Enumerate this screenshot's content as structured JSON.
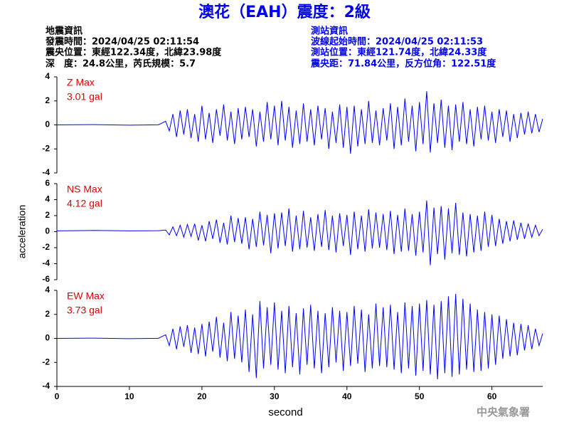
{
  "header": {
    "title": "澳花（EAH）震度：2級",
    "left": [
      "地震資訊",
      "發震時間：2024/04/25 02:11:54",
      "震央位置：東經122.34度，北緯23.98度",
      "深　度：24.8公里，芮氏規模：5.7"
    ],
    "right": [
      "測站資訊",
      "波線起始時間：2024/04/25 02:11:53",
      "測站位置：東經121.74度，北緯24.33度",
      "震央距：71.84公里，反方位角：122.51度"
    ]
  },
  "watermark": "中央氣象署",
  "chart_data": [
    {
      "type": "line",
      "annotations": [
        "Z Max",
        "3.01 gal"
      ],
      "color": "#0000ff",
      "xlim": [
        0,
        67
      ],
      "ylim": [
        -4,
        4
      ],
      "yticks": [
        -4,
        -2,
        0,
        2,
        4
      ],
      "x": [
        0,
        5,
        10,
        14,
        15,
        15.5,
        16,
        16.5,
        17,
        17.5,
        18,
        18.5,
        19,
        19.5,
        20,
        20.5,
        21,
        21.5,
        22,
        22.5,
        23,
        23.5,
        24,
        24.5,
        25,
        25.5,
        26,
        26.5,
        27,
        27.5,
        28,
        28.5,
        29,
        29.5,
        30,
        30.5,
        31,
        31.5,
        32,
        32.5,
        33,
        33.5,
        34,
        34.5,
        35,
        35.5,
        36,
        36.5,
        37,
        37.5,
        38,
        38.5,
        39,
        39.5,
        40,
        40.5,
        41,
        41.5,
        42,
        42.5,
        43,
        43.5,
        44,
        44.5,
        45,
        45.5,
        46,
        46.5,
        47,
        47.5,
        48,
        48.5,
        49,
        49.5,
        50,
        50.5,
        51,
        51.5,
        52,
        52.5,
        53,
        53.5,
        54,
        54.5,
        55,
        55.5,
        56,
        56.5,
        57,
        57.5,
        58,
        58.5,
        59,
        59.5,
        60,
        60.5,
        61,
        61.5,
        62,
        62.5,
        63,
        63.5,
        64,
        64.5,
        65,
        65.5,
        66,
        66.5,
        67
      ],
      "values": [
        0,
        0.02,
        -0.02,
        0.01,
        0.3,
        -0.5,
        0.9,
        -1.0,
        1.2,
        -0.8,
        1.3,
        -1.1,
        0.9,
        -1.4,
        1.6,
        -1.2,
        1.0,
        -1.5,
        1.3,
        -0.9,
        1.7,
        -1.3,
        1.1,
        -1.6,
        1.4,
        -1.2,
        1.5,
        -1.0,
        1.3,
        -1.8,
        1.1,
        -1.4,
        1.9,
        -1.2,
        1.6,
        -1.7,
        2.0,
        -1.3,
        1.5,
        -1.9,
        1.2,
        -1.6,
        1.8,
        -1.4,
        1.3,
        -1.7,
        1.6,
        -1.2,
        1.4,
        -2.0,
        1.1,
        -1.5,
        1.7,
        -1.9,
        1.5,
        -2.4,
        1.6,
        -1.8,
        1.3,
        -1.6,
        2.0,
        -1.5,
        1.2,
        -1.7,
        1.4,
        -1.3,
        1.8,
        -2.0,
        1.5,
        -1.7,
        2.2,
        -1.4,
        1.6,
        -2.2,
        1.9,
        -1.6,
        2.8,
        -2.3,
        1.8,
        -1.5,
        2.1,
        -1.9,
        1.6,
        -2.1,
        1.7,
        -1.4,
        1.9,
        -1.6,
        1.3,
        -1.8,
        1.5,
        -1.2,
        1.6,
        -1.3,
        1.1,
        -1.5,
        1.3,
        -1.0,
        1.2,
        -1.4,
        0.9,
        -1.1,
        1.0,
        -0.8,
        1.1,
        -0.7,
        0.9,
        -0.6,
        0.5
      ]
    },
    {
      "type": "line",
      "annotations": [
        "NS Max",
        "4.12 gal"
      ],
      "color": "#0000ff",
      "ylabel": "acceleration",
      "xlim": [
        0,
        67
      ],
      "ylim": [
        -6,
        6
      ],
      "yticks": [
        -6,
        -4,
        -2,
        0,
        2,
        4,
        6
      ],
      "x": [
        0,
        5,
        10,
        14,
        15,
        15.5,
        16,
        16.5,
        17,
        17.5,
        18,
        18.5,
        19,
        19.5,
        20,
        20.5,
        21,
        21.5,
        22,
        22.5,
        23,
        23.5,
        24,
        24.5,
        25,
        25.5,
        26,
        26.5,
        27,
        27.5,
        28,
        28.5,
        29,
        29.5,
        30,
        30.5,
        31,
        31.5,
        32,
        32.5,
        33,
        33.5,
        34,
        34.5,
        35,
        35.5,
        36,
        36.5,
        37,
        37.5,
        38,
        38.5,
        39,
        39.5,
        40,
        40.5,
        41,
        41.5,
        42,
        42.5,
        43,
        43.5,
        44,
        44.5,
        45,
        45.5,
        46,
        46.5,
        47,
        47.5,
        48,
        48.5,
        49,
        49.5,
        50,
        50.5,
        51,
        51.5,
        52,
        52.5,
        53,
        53.5,
        54,
        54.5,
        55,
        55.5,
        56,
        56.5,
        57,
        57.5,
        58,
        58.5,
        59,
        59.5,
        60,
        60.5,
        61,
        61.5,
        62,
        62.5,
        63,
        63.5,
        64,
        64.5,
        65,
        65.5,
        66,
        66.5,
        67
      ],
      "values": [
        0.1,
        0.15,
        0.1,
        0.12,
        0.2,
        -0.4,
        0.6,
        -0.5,
        0.8,
        -0.7,
        0.9,
        -0.6,
        1.0,
        -1.1,
        0.8,
        -1.2,
        1.3,
        -0.9,
        1.5,
        -1.4,
        1.1,
        -1.6,
        2.0,
        -1.3,
        1.7,
        -1.5,
        1.8,
        -2.2,
        1.6,
        -1.9,
        2.5,
        -1.7,
        2.1,
        -2.7,
        2.3,
        -2.1,
        2.4,
        -1.8,
        2.9,
        -2.5,
        2.0,
        -2.2,
        2.6,
        -2.0,
        1.8,
        -2.4,
        2.2,
        -1.9,
        2.7,
        -2.3,
        2.0,
        -2.6,
        2.3,
        -1.8,
        2.1,
        -2.9,
        2.5,
        -2.2,
        2.0,
        -2.5,
        2.8,
        -2.1,
        2.4,
        -2.0,
        2.2,
        -2.3,
        2.6,
        -2.8,
        2.1,
        -2.5,
        2.9,
        -2.4,
        2.2,
        -3.0,
        2.5,
        -2.6,
        3.9,
        -4.2,
        3.0,
        -2.8,
        3.2,
        -3.5,
        2.9,
        -2.7,
        3.6,
        -2.9,
        2.4,
        -3.1,
        2.2,
        -2.6,
        2.0,
        -2.4,
        2.5,
        -1.9,
        2.1,
        -1.8,
        1.6,
        -1.5,
        1.3,
        -1.2,
        1.4,
        -1.0,
        1.1,
        -0.9,
        1.0,
        -0.7,
        0.8,
        -0.5,
        0.3
      ]
    },
    {
      "type": "line",
      "annotations": [
        "EW Max",
        "3.73 gal"
      ],
      "color": "#0000ff",
      "xlabel": "second",
      "xlim": [
        0,
        67
      ],
      "xticks": [
        0,
        10,
        20,
        30,
        40,
        50,
        60
      ],
      "ylim": [
        -4,
        4
      ],
      "yticks": [
        -4,
        -2,
        0,
        2,
        4
      ],
      "x": [
        0,
        5,
        10,
        14,
        15,
        15.5,
        16,
        16.5,
        17,
        17.5,
        18,
        18.5,
        19,
        19.5,
        20,
        20.5,
        21,
        21.5,
        22,
        22.5,
        23,
        23.5,
        24,
        24.5,
        25,
        25.5,
        26,
        26.5,
        27,
        27.5,
        28,
        28.5,
        29,
        29.5,
        30,
        30.5,
        31,
        31.5,
        32,
        32.5,
        33,
        33.5,
        34,
        34.5,
        35,
        35.5,
        36,
        36.5,
        37,
        37.5,
        38,
        38.5,
        39,
        39.5,
        40,
        40.5,
        41,
        41.5,
        42,
        42.5,
        43,
        43.5,
        44,
        44.5,
        45,
        45.5,
        46,
        46.5,
        47,
        47.5,
        48,
        48.5,
        49,
        49.5,
        50,
        50.5,
        51,
        51.5,
        52,
        52.5,
        53,
        53.5,
        54,
        54.5,
        55,
        55.5,
        56,
        56.5,
        57,
        57.5,
        58,
        58.5,
        59,
        59.5,
        60,
        60.5,
        61,
        61.5,
        62,
        62.5,
        63,
        63.5,
        64,
        64.5,
        65,
        65.5,
        66,
        66.5,
        67
      ],
      "values": [
        0,
        0.02,
        -0.02,
        0.01,
        0.3,
        -0.6,
        0.8,
        -0.9,
        1.0,
        -0.7,
        1.1,
        -1.2,
        0.9,
        -1.3,
        1.2,
        -1.5,
        1.4,
        -1.1,
        1.8,
        -1.6,
        1.3,
        -1.9,
        2.2,
        -1.7,
        1.9,
        -2.0,
        2.4,
        -2.8,
        2.0,
        -3.3,
        3.1,
        -2.5,
        2.6,
        -2.2,
        3.0,
        -2.6,
        2.3,
        -2.9,
        2.7,
        -2.4,
        2.1,
        -3.0,
        2.5,
        -2.2,
        2.8,
        -2.5,
        2.3,
        -2.9,
        2.1,
        -2.4,
        2.6,
        -2.0,
        2.3,
        -2.7,
        2.2,
        -2.3,
        2.7,
        -2.1,
        2.4,
        -2.8,
        2.0,
        -2.5,
        2.9,
        -2.3,
        2.6,
        -2.4,
        2.8,
        -2.6,
        2.2,
        -2.9,
        3.0,
        -2.5,
        2.7,
        -3.1,
        2.9,
        -2.7,
        3.2,
        -3.0,
        2.8,
        -3.4,
        3.1,
        -2.9,
        3.5,
        -3.2,
        3.7,
        -3.0,
        3.3,
        -2.6,
        2.9,
        -2.8,
        2.4,
        -2.7,
        2.2,
        -2.5,
        2.0,
        -2.2,
        1.9,
        -1.7,
        1.6,
        -1.5,
        1.3,
        -1.4,
        1.2,
        -1.0,
        1.1,
        -0.9,
        0.8,
        -0.6,
        0.4
      ]
    }
  ]
}
